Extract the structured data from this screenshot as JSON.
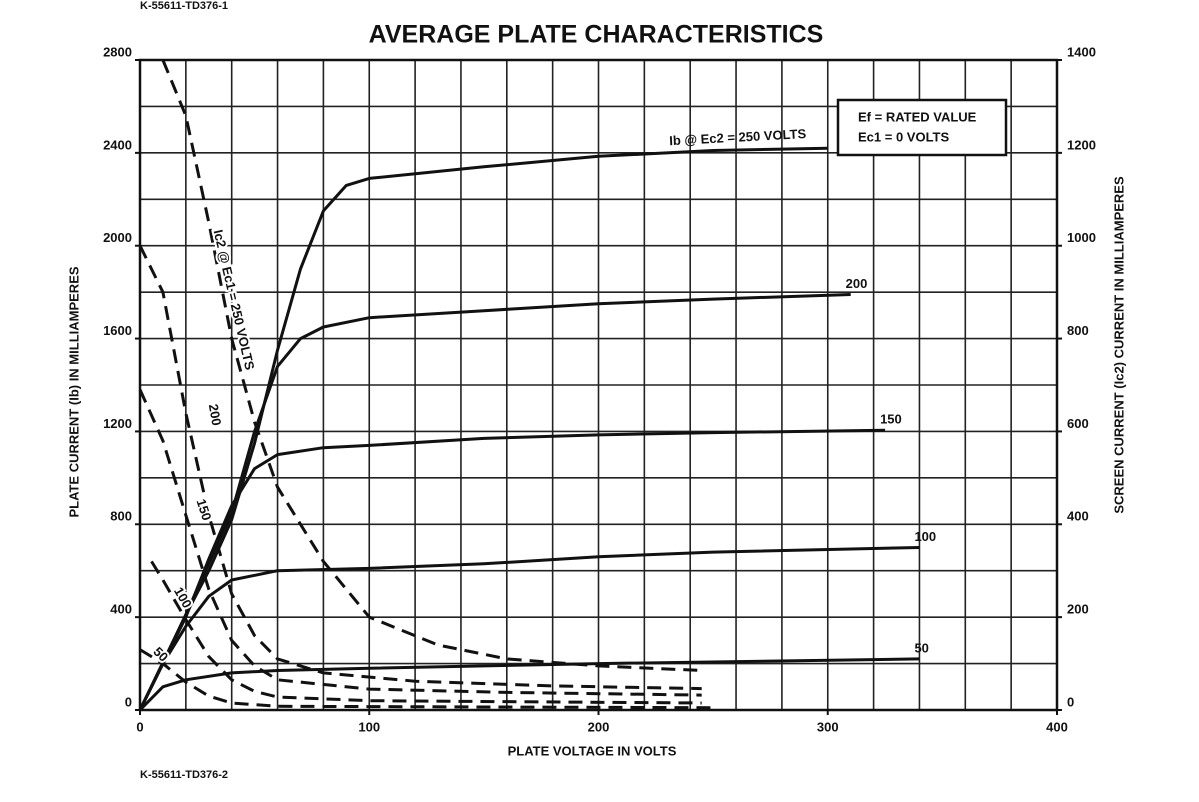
{
  "chart_data": {
    "type": "line",
    "doc_id_top": "K-55611-TD376-1",
    "doc_id_bottom": "K-55611-TD376-2",
    "title": "AVERAGE PLATE CHARACTERISTICS",
    "x_label": "PLATE VOLTAGE IN VOLTS",
    "y_label": "PLATE CURRENT (Ib) IN MILLIAMPERES",
    "y2_label": "SCREEN CURRENT (Ic2) CURRENT IN MILLIAMPERES",
    "legend_lines": [
      "Ef = RATED VALUE",
      "Ec1 = 0 VOLTS"
    ],
    "xlim": [
      0,
      400
    ],
    "xticks": [
      0,
      100,
      200,
      300,
      400
    ],
    "ylim": [
      0,
      2800
    ],
    "yticks": [
      0,
      400,
      800,
      1200,
      1600,
      2000,
      2400,
      2800
    ],
    "y2lim": [
      0,
      1400
    ],
    "y2ticks": [
      0,
      200,
      400,
      600,
      800,
      1000,
      1200,
      1400
    ],
    "xgrid": [
      0,
      20,
      40,
      60,
      80,
      100,
      120,
      140,
      160,
      180,
      200,
      220,
      240,
      260,
      280,
      300,
      320,
      340,
      360,
      380,
      400
    ],
    "ygrid": [
      0,
      200,
      400,
      600,
      800,
      1000,
      1200,
      1400,
      1600,
      1800,
      2000,
      2200,
      2400,
      2600,
      2800
    ],
    "series": [
      {
        "name": "Ib @ Ec2 = 250 VOLTS",
        "color": "#111111",
        "dashed": false,
        "x": [
          0,
          10,
          20,
          30,
          40,
          50,
          60,
          70,
          80,
          90,
          100,
          150,
          200,
          250,
          300
        ],
        "values": [
          0,
          200,
          410,
          600,
          820,
          1150,
          1550,
          1900,
          2150,
          2260,
          2290,
          2340,
          2385,
          2410,
          2420
        ]
      },
      {
        "name": "200",
        "color": "#111111",
        "dashed": false,
        "x": [
          0,
          20,
          40,
          50,
          60,
          70,
          80,
          100,
          150,
          200,
          250,
          310
        ],
        "values": [
          0,
          410,
          850,
          1200,
          1480,
          1600,
          1650,
          1690,
          1720,
          1750,
          1770,
          1790
        ]
      },
      {
        "name": "150",
        "color": "#111111",
        "dashed": false,
        "x": [
          0,
          20,
          30,
          40,
          50,
          60,
          80,
          100,
          150,
          200,
          250,
          325
        ],
        "values": [
          0,
          400,
          650,
          880,
          1040,
          1100,
          1130,
          1140,
          1170,
          1185,
          1195,
          1205
        ]
      },
      {
        "name": "100",
        "color": "#111111",
        "dashed": false,
        "x": [
          0,
          10,
          20,
          30,
          40,
          60,
          100,
          150,
          200,
          250,
          340
        ],
        "values": [
          0,
          200,
          360,
          490,
          560,
          600,
          610,
          630,
          660,
          680,
          700
        ]
      },
      {
        "name": "50",
        "color": "#111111",
        "dashed": false,
        "x": [
          0,
          10,
          20,
          40,
          60,
          100,
          200,
          340
        ],
        "values": [
          0,
          100,
          130,
          160,
          170,
          180,
          200,
          220
        ]
      },
      {
        "name": "Ic2 @ Ec1 = 250 VOLTS",
        "color": "#111111",
        "dashed": true,
        "axis": "y2",
        "x": [
          10,
          20,
          30,
          40,
          50,
          60,
          70,
          80,
          100,
          130,
          160,
          200,
          245
        ],
        "values": [
          1400,
          1280,
          1050,
          800,
          620,
          480,
          400,
          320,
          200,
          140,
          110,
          95,
          85
        ]
      },
      {
        "name": "200",
        "color": "#111111",
        "dashed": true,
        "axis": "y2",
        "x": [
          0,
          10,
          20,
          30,
          40,
          50,
          60,
          80,
          120,
          180,
          245
        ],
        "values": [
          1000,
          900,
          640,
          420,
          250,
          160,
          110,
          80,
          62,
          52,
          46
        ]
      },
      {
        "name": "150",
        "color": "#111111",
        "dashed": true,
        "axis": "y2",
        "x": [
          0,
          10,
          20,
          30,
          40,
          50,
          60,
          100,
          160,
          245
        ],
        "values": [
          690,
          580,
          420,
          260,
          150,
          95,
          65,
          45,
          38,
          32
        ]
      },
      {
        "name": "100",
        "color": "#111111",
        "dashed": true,
        "axis": "y2",
        "x": [
          5,
          10,
          20,
          30,
          40,
          50,
          60,
          100,
          245
        ],
        "values": [
          320,
          280,
          195,
          115,
          65,
          40,
          28,
          20,
          15
        ]
      },
      {
        "name": "50",
        "color": "#111111",
        "dashed": true,
        "axis": "y2",
        "x": [
          0,
          10,
          20,
          30,
          40,
          60,
          250
        ],
        "values": [
          130,
          100,
          60,
          30,
          15,
          8,
          5
        ]
      }
    ]
  }
}
